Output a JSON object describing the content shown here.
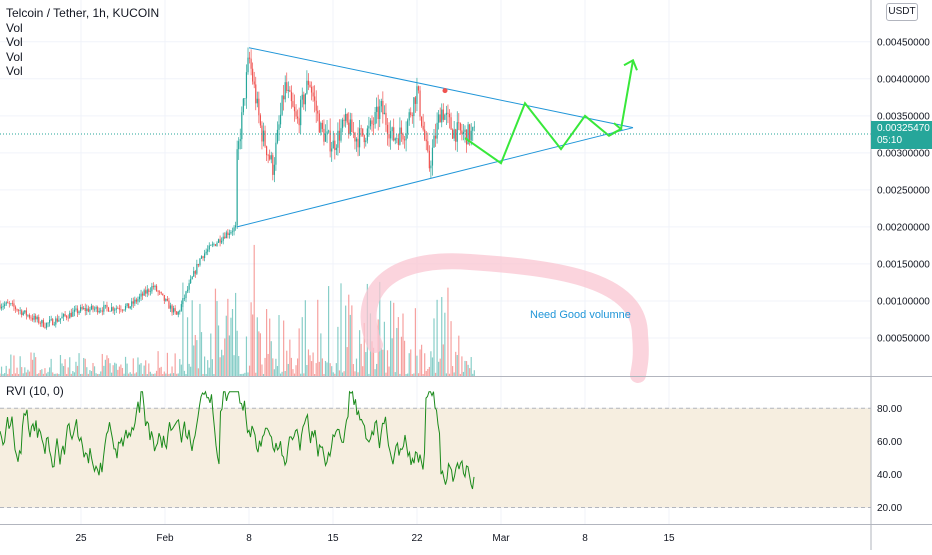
{
  "header": {
    "title": "Telcoin / Tether, 1h, KUCOIN",
    "indicators": [
      "Vol",
      "Vol",
      "Vol",
      "Vol"
    ]
  },
  "unit_label": "USDT",
  "price_tag": {
    "price": "0.00325470",
    "countdown": "05:10"
  },
  "annotation": "Need Good volumne",
  "colors": {
    "up": "#26a69a",
    "down": "#ef5350",
    "triangle": "#2196d8",
    "projection": "#38e83a",
    "rvi_line": "#1b8a1b",
    "rvi_band": "#f6eee0",
    "highlight": "#f9c6d2"
  },
  "chart_data": [
    {
      "type": "candlestick",
      "title": "Telcoin / Tether, 1h, KUCOIN",
      "y_axis_ticks": [
        "0.00450000",
        "0.00400000",
        "0.00350000",
        "0.00300000",
        "0.00250000",
        "0.00200000",
        "0.00150000",
        "0.00100000",
        "0.00050000"
      ],
      "ylim": [
        0.0,
        0.0047
      ],
      "x_axis_ticks": [
        "25",
        "Feb",
        "8",
        "15",
        "22",
        "Mar",
        "8",
        "15"
      ],
      "last_price": 0.0032547,
      "triangle_pattern": {
        "upper": [
          [
            "2021-02-08",
            0.00442
          ],
          [
            "2021-03-12",
            0.00334
          ]
        ],
        "lower": [
          [
            "2021-02-07",
            0.002
          ],
          [
            "2021-03-12",
            0.00334
          ]
        ]
      },
      "projection_path": [
        [
          "2021-02-26",
          0.0032
        ],
        [
          "2021-02-29",
          0.00286
        ],
        [
          "2021-03-03",
          0.00367
        ],
        [
          "2021-03-06",
          0.00305
        ],
        [
          "2021-03-08",
          0.0035
        ],
        [
          "2021-03-10",
          0.00323
        ],
        [
          "2021-03-11",
          0.00332
        ],
        [
          "2021-03-12",
          0.00425
        ]
      ],
      "key_points": [
        [
          "2021-01-19",
          0.00095
        ],
        [
          "2021-01-22",
          0.00068
        ],
        [
          "2021-01-25",
          0.00088
        ],
        [
          "2021-01-29",
          0.00092
        ],
        [
          "2021-01-31",
          0.0012
        ],
        [
          "2021-02-02",
          0.0008
        ],
        [
          "2021-02-04",
          0.0016
        ],
        [
          "2021-02-06",
          0.0019
        ],
        [
          "2021-02-07",
          0.002
        ],
        [
          "2021-02-07",
          0.0029
        ],
        [
          "2021-02-08",
          0.0043
        ],
        [
          "2021-02-09",
          0.0033
        ],
        [
          "2021-02-10",
          0.0028
        ],
        [
          "2021-02-11",
          0.0039
        ],
        [
          "2021-02-12",
          0.0034
        ],
        [
          "2021-02-13",
          0.004
        ],
        [
          "2021-02-14",
          0.0033
        ],
        [
          "2021-02-15",
          0.0031
        ],
        [
          "2021-02-16",
          0.0034
        ],
        [
          "2021-02-17",
          0.0032
        ],
        [
          "2021-02-18",
          0.0033
        ],
        [
          "2021-02-19",
          0.0036
        ],
        [
          "2021-02-20",
          0.0032
        ],
        [
          "2021-02-21",
          0.0033
        ],
        [
          "2021-02-22",
          0.00385
        ],
        [
          "2021-02-23",
          0.0028
        ],
        [
          "2021-02-24",
          0.0036
        ],
        [
          "2021-02-25",
          0.0033
        ],
        [
          "2021-02-26",
          0.00325
        ]
      ]
    },
    {
      "type": "line",
      "title": "RVI (10, 0)",
      "y_axis_ticks": [
        "80.00",
        "60.00",
        "40.00",
        "20.00"
      ],
      "ylim": [
        12,
        92
      ],
      "band": [
        20,
        80
      ],
      "x_axis_ticks": [
        "25",
        "Feb",
        "8",
        "15",
        "22",
        "Mar",
        "8",
        "15"
      ]
    }
  ]
}
